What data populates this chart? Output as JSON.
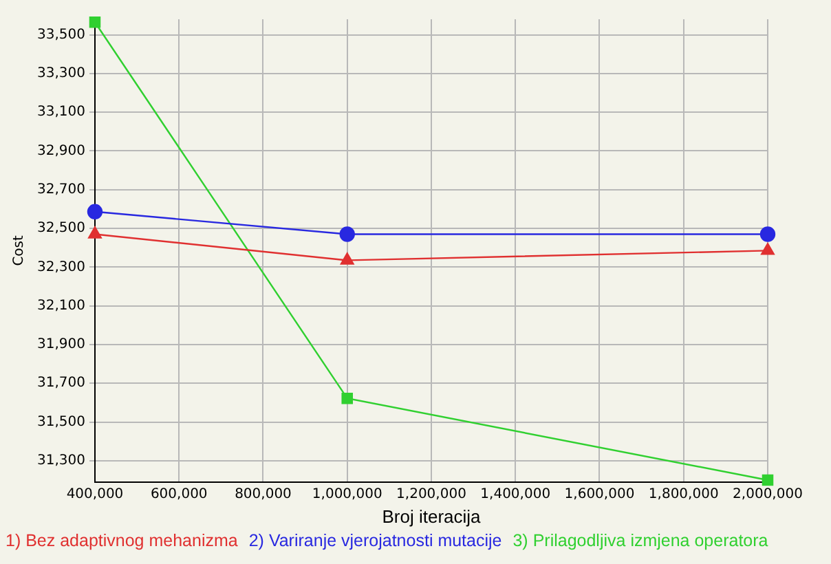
{
  "chart_data": {
    "type": "line",
    "xlabel": "Broj iteracija",
    "ylabel": "Cost",
    "x": [
      400000,
      1000000,
      2000000
    ],
    "series": [
      {
        "name": "1) Bez adaptivnog mehanizma",
        "color": "#e03030",
        "marker": "triangle",
        "values": [
          32470,
          32335,
          32385
        ]
      },
      {
        "name": "2) Variranje vjerojatnosti mutacije",
        "color": "#2828e0",
        "marker": "circle",
        "values": [
          32586,
          32470,
          32470
        ]
      },
      {
        "name": "3) Prilagodljiva izmjena operatora",
        "color": "#30d030",
        "marker": "square",
        "values": [
          33565,
          31622,
          31200
        ]
      }
    ],
    "xlim": [
      400000,
      2000000
    ],
    "xticks": [
      {
        "value": 400000,
        "label": "400,000"
      },
      {
        "value": 600000,
        "label": "600,000"
      },
      {
        "value": 800000,
        "label": "800,000"
      },
      {
        "value": 1000000,
        "label": "1,000,000"
      },
      {
        "value": 1200000,
        "label": "1,200,000"
      },
      {
        "value": 1400000,
        "label": "1,400,000"
      },
      {
        "value": 1600000,
        "label": "1,600,000"
      },
      {
        "value": 1800000,
        "label": "1,800,000"
      },
      {
        "value": 2000000,
        "label": "2,000,000"
      }
    ],
    "ylim": [
      31190,
      33580
    ],
    "yticks": [
      {
        "value": 31300,
        "label": "31,300"
      },
      {
        "value": 31500,
        "label": "31,500"
      },
      {
        "value": 31700,
        "label": "31,700"
      },
      {
        "value": 31900,
        "label": "31,900"
      },
      {
        "value": 32100,
        "label": "32,100"
      },
      {
        "value": 32300,
        "label": "32,300"
      },
      {
        "value": 32500,
        "label": "32,500"
      },
      {
        "value": 32700,
        "label": "32,700"
      },
      {
        "value": 32900,
        "label": "32,900"
      },
      {
        "value": 33100,
        "label": "33,100"
      },
      {
        "value": 33300,
        "label": "33,300"
      },
      {
        "value": 33500,
        "label": "33,500"
      }
    ],
    "grid": true,
    "legend": "bottom"
  }
}
